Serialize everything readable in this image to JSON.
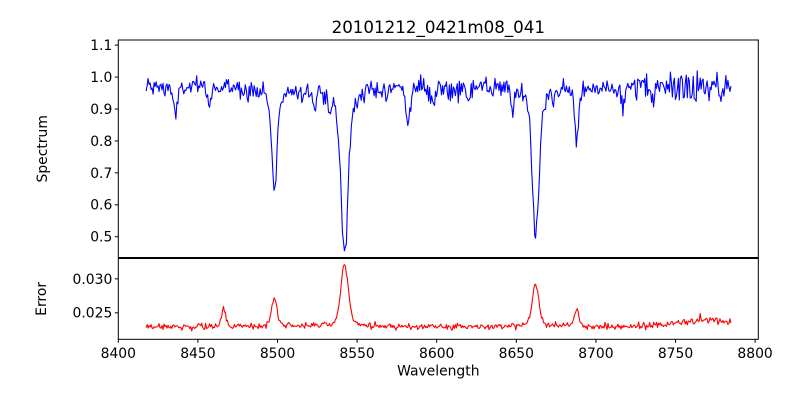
{
  "figure": {
    "background": "#ffffff",
    "axes_color": "#000000"
  },
  "chart_data": {
    "type": "line",
    "title": "20101212_0421m08_041",
    "xlabel": "Wavelength",
    "xlim": [
      8400,
      8802
    ],
    "x_range_data": [
      8417.5,
      8785.0
    ],
    "x_step": 0.6225,
    "xticks": {
      "values": [
        8400,
        8450,
        8500,
        8550,
        8600,
        8650,
        8700,
        8750,
        8800
      ],
      "labels": [
        "8400",
        "8450",
        "8500",
        "8550",
        "8600",
        "8650",
        "8700",
        "8750",
        "8800"
      ]
    },
    "grid": false,
    "legend": null,
    "subplots": [
      {
        "name": "spectrum",
        "ylabel": "Spectrum",
        "color": "#0000ff",
        "ylim": [
          0.435,
          1.116
        ],
        "yticks": {
          "values": [
            0.5,
            0.6,
            0.7,
            0.8,
            0.9,
            1.0,
            1.1
          ],
          "labels": [
            "0.5",
            "0.6",
            "0.7",
            "0.8",
            "0.9",
            "1.0",
            "1.1"
          ]
        },
        "continuum": 0.968,
        "noise_sigma": 0.015,
        "noise_rise_start": 8690,
        "noise_rise_factor": 0.8,
        "absorption_lines": [
          {
            "center": 8498.0,
            "depth": 0.32,
            "width": 1.6
          },
          {
            "center": 8542.1,
            "depth": 0.51,
            "width": 2.2
          },
          {
            "center": 8662.1,
            "depth": 0.475,
            "width": 2.0
          },
          {
            "center": 8688.0,
            "depth": 0.18,
            "width": 1.0
          }
        ],
        "minor_dips": [
          {
            "center": 8436,
            "depth": 0.09,
            "width": 1.2
          },
          {
            "center": 8457,
            "depth": 0.05,
            "width": 1.0
          },
          {
            "center": 8523,
            "depth": 0.06,
            "width": 1.2
          },
          {
            "center": 8533,
            "depth": 0.05,
            "width": 1.0
          },
          {
            "center": 8582,
            "depth": 0.105,
            "width": 1.3
          },
          {
            "center": 8598,
            "depth": 0.06,
            "width": 1.0
          },
          {
            "center": 8620,
            "depth": 0.045,
            "width": 1.0
          },
          {
            "center": 8648,
            "depth": 0.05,
            "width": 1.0
          },
          {
            "center": 8717,
            "depth": 0.06,
            "width": 1.1
          },
          {
            "center": 8736,
            "depth": 0.05,
            "width": 1.0
          }
        ]
      },
      {
        "name": "error",
        "ylabel": "Error",
        "color": "#ff0000",
        "ylim": [
          0.0211,
          0.033
        ],
        "yticks": {
          "values": [
            0.025,
            0.03
          ],
          "labels": [
            "0.025",
            "0.030"
          ]
        },
        "baseline": 0.02295,
        "noise_sigma": 0.00023,
        "noise_rise_start": 8690,
        "noise_rise_factor": 0.5,
        "peaks": [
          {
            "center": 8466.0,
            "amp": 0.0027,
            "width": 1.2
          },
          {
            "center": 8498.0,
            "amp": 0.0042,
            "width": 1.6
          },
          {
            "center": 8542.1,
            "amp": 0.0092,
            "width": 2.2
          },
          {
            "center": 8662.1,
            "amp": 0.0062,
            "width": 2.0
          },
          {
            "center": 8688.0,
            "amp": 0.0026,
            "width": 1.2
          },
          {
            "center": 8770.0,
            "amp": 0.0011,
            "width": 15.0
          }
        ]
      }
    ]
  }
}
